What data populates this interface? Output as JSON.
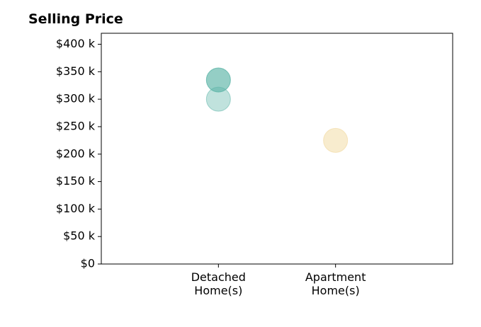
{
  "chart_data": {
    "type": "scatter",
    "title": "Selling Price",
    "xlabel": "",
    "ylabel": "",
    "categories": [
      "Detached\nHome(s)",
      "Apartment\nHome(s)"
    ],
    "x_range": [
      0,
      3
    ],
    "ylim": [
      0,
      420000
    ],
    "y_ticks": [
      0,
      50000,
      100000,
      150000,
      200000,
      250000,
      300000,
      350000,
      400000
    ],
    "y_tick_labels": [
      "$0",
      "$50 k",
      "$100 k",
      "$150 k",
      "$200 k",
      "$250 k",
      "$300 k",
      "$350 k",
      "$400 k"
    ],
    "grid": false,
    "points": [
      {
        "category": "Detached\nHome(s)",
        "x": 1,
        "y": 335000,
        "color": "#5ab4a6",
        "opacity": 0.65
      },
      {
        "category": "Detached\nHome(s)",
        "x": 1,
        "y": 300000,
        "color": "#5ab4a6",
        "opacity": 0.38
      },
      {
        "category": "Apartment\nHome(s)",
        "x": 2,
        "y": 225000,
        "color": "#f2dca6",
        "opacity": 0.55
      }
    ]
  }
}
